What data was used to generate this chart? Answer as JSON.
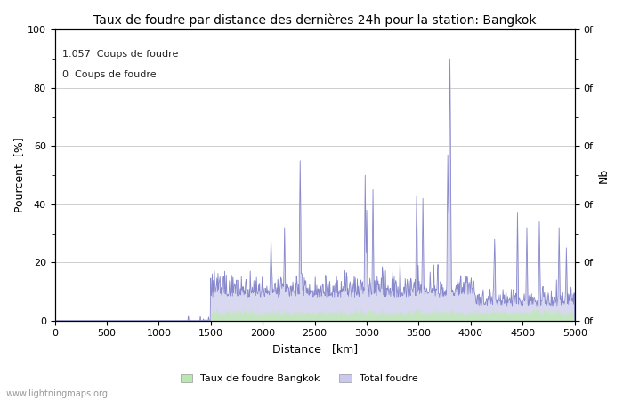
{
  "title": "Taux de foudre par distance des dernières 24h pour la station: Bangkok",
  "xlabel": "Distance   [km]",
  "ylabel_left": "Pourcent  [%]",
  "ylabel_right": "Nb",
  "annotation_line1": "1.057  Coups de foudre",
  "annotation_line2": "0  Coups de foudre",
  "legend_label1": "Taux de foudre Bangkok",
  "legend_label2": "Total foudre",
  "legend_color1": "#b8e8b0",
  "legend_color2": "#c8c8f0",
  "line_color": "#8888cc",
  "fill_color": "#d8d8f0",
  "green_fill_color": "#c0e8b8",
  "xlim": [
    0,
    5000
  ],
  "ylim": [
    0,
    100
  ],
  "xticks": [
    0,
    500,
    1000,
    1500,
    2000,
    2500,
    3000,
    3500,
    4000,
    4500,
    5000
  ],
  "yticks_left": [
    0,
    20,
    40,
    60,
    80,
    100
  ],
  "watermark": "www.lightningmaps.org",
  "bg_color": "#ffffff",
  "grid_color": "#bbbbbb"
}
